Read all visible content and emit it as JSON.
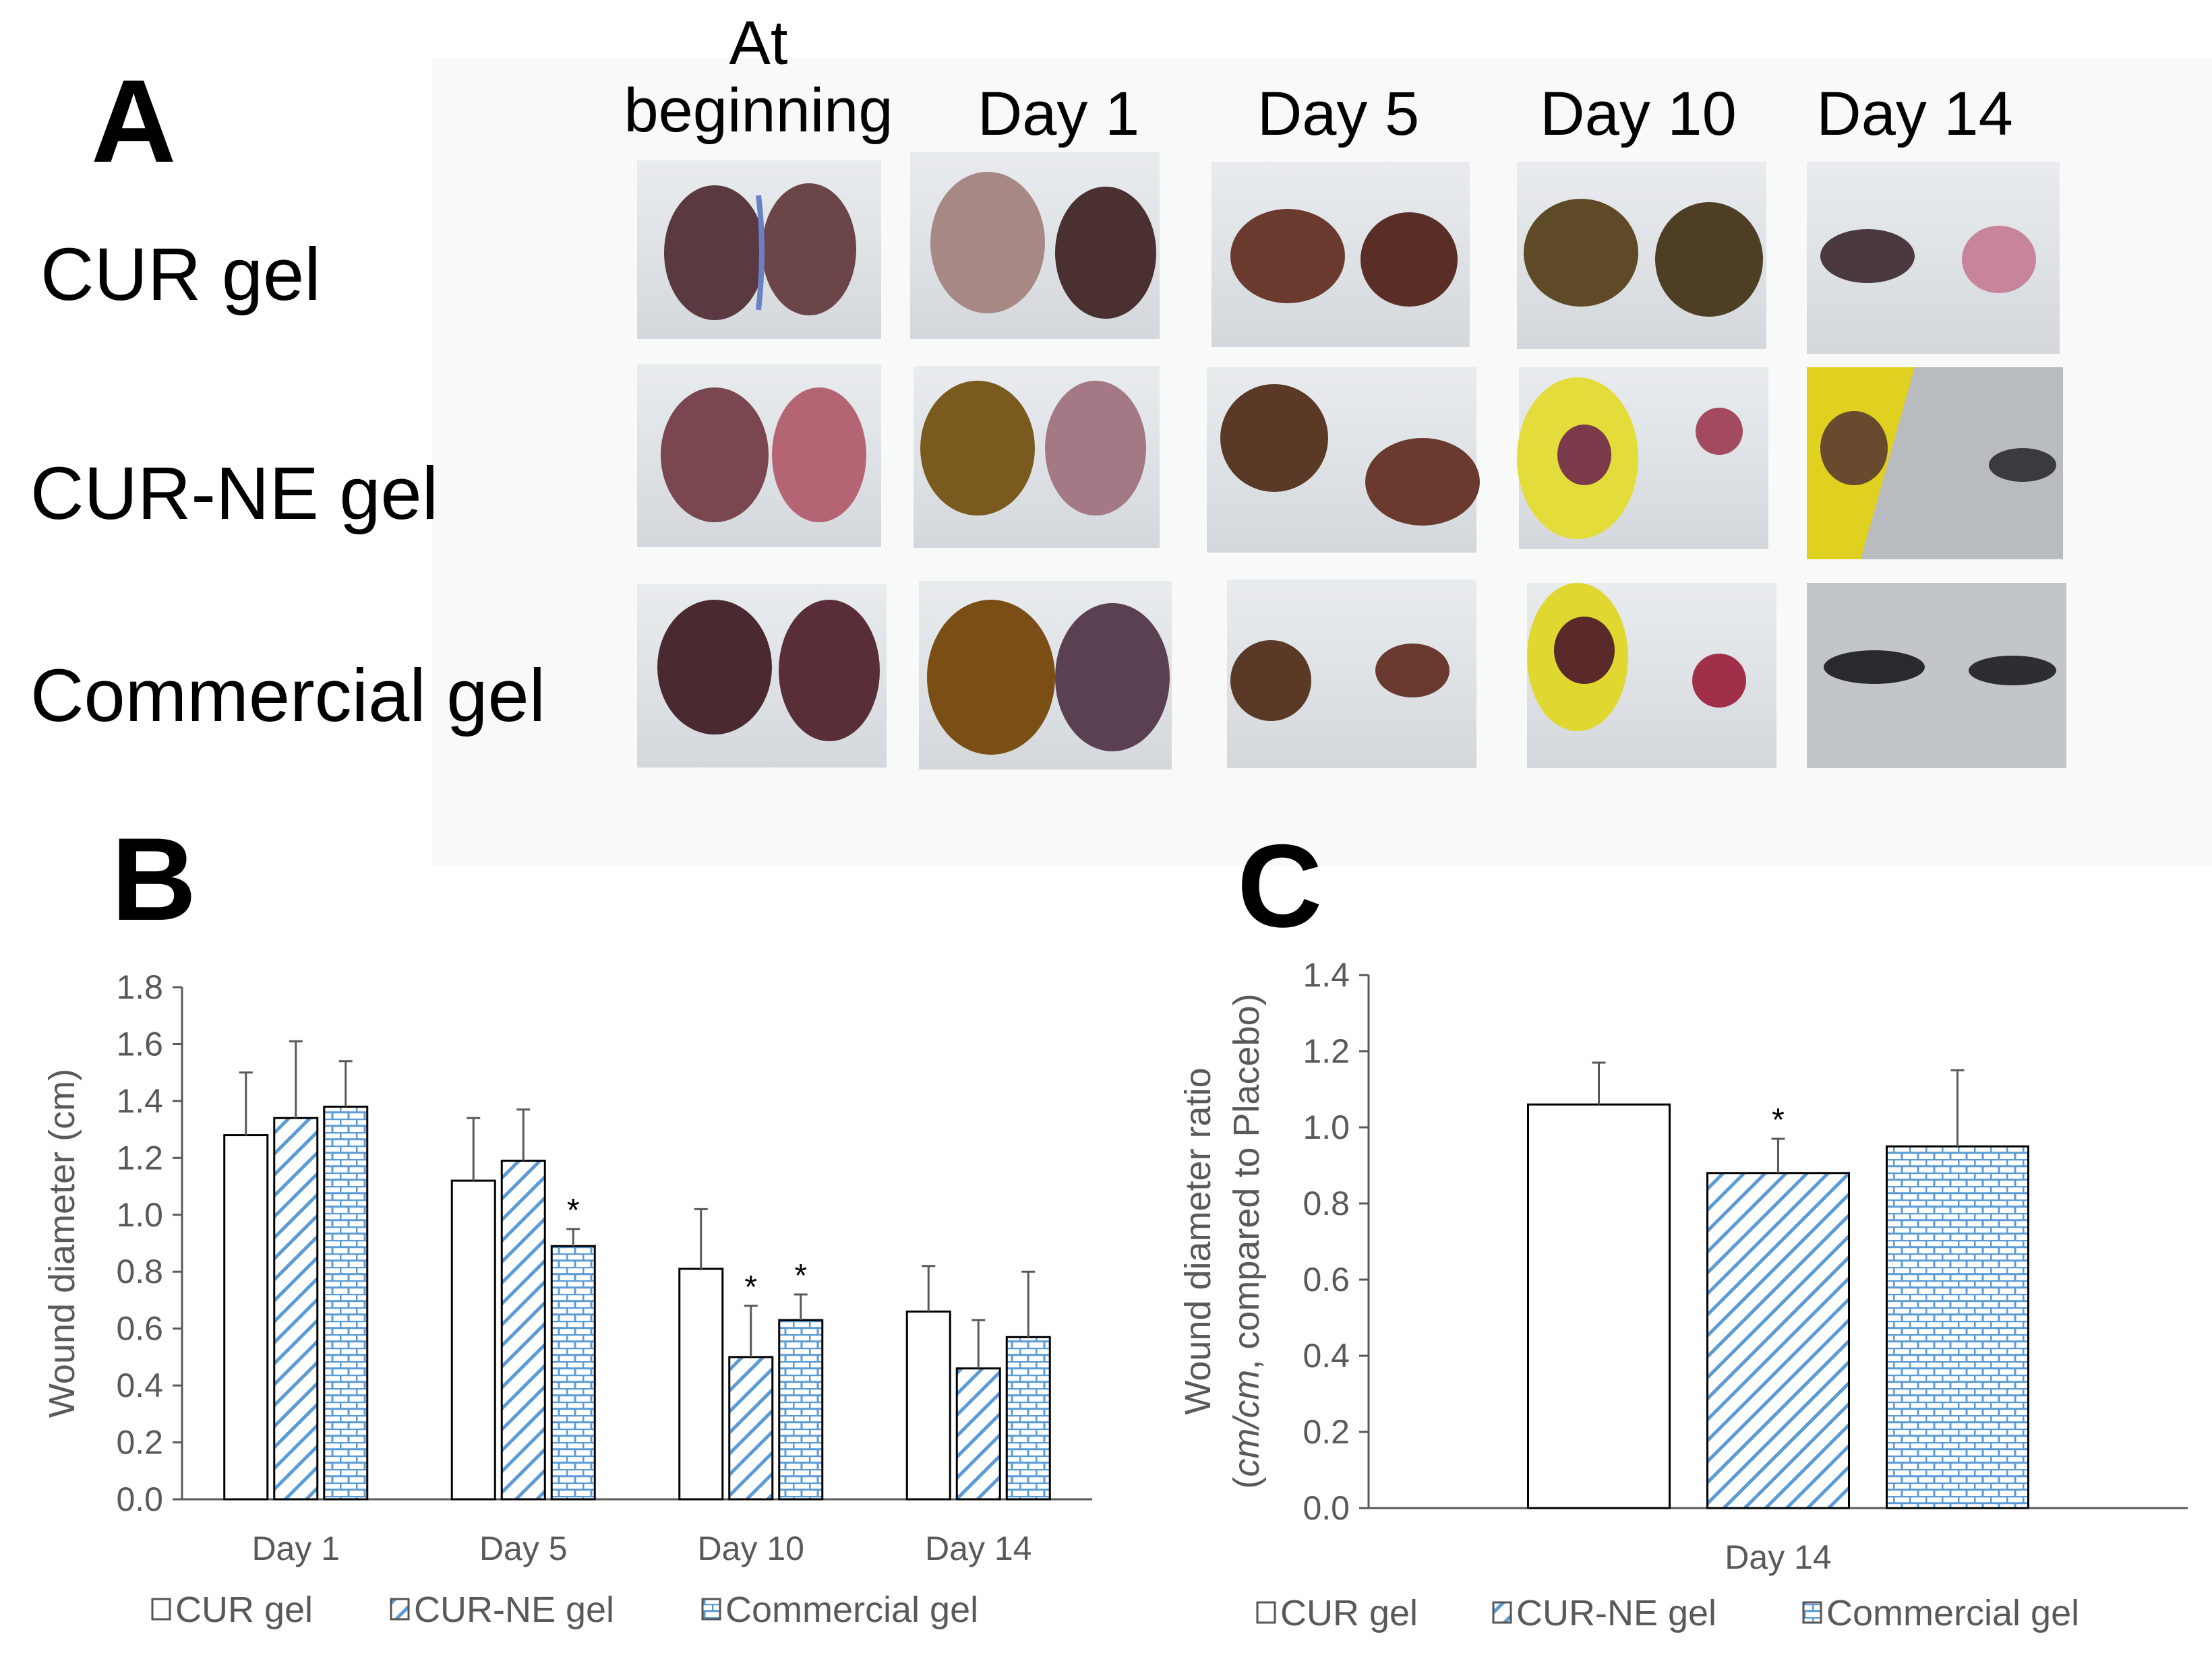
{
  "panels": {
    "a": "A",
    "b": "B",
    "c": "C"
  },
  "photo_grid": {
    "column_headers": [
      {
        "line1": "At",
        "line2": "beginning"
      },
      {
        "line1": "",
        "line2": "Day 1"
      },
      {
        "line1": "",
        "line2": "Day 5"
      },
      {
        "line1": "",
        "line2": "Day 10"
      },
      {
        "line1": "",
        "line2": "Day 14"
      }
    ],
    "rows": [
      "CUR gel",
      "CUR-NE gel",
      "Commercial gel"
    ]
  },
  "chart_data": [
    {
      "type": "bar",
      "title": "",
      "categories": [
        "Day 1",
        "Day 5",
        "Day 10",
        "Day 14"
      ],
      "xlabel": "",
      "ylabel": "Wound diameter (cm)",
      "ylim": [
        0,
        1.8
      ],
      "yticks": [
        "0.0",
        "0.2",
        "0.4",
        "0.6",
        "0.8",
        "1.0",
        "1.2",
        "1.4",
        "1.6",
        "1.8"
      ],
      "series": [
        {
          "name": "CUR gel",
          "values": [
            1.28,
            1.12,
            0.81,
            0.66
          ],
          "errors": [
            0.22,
            0.22,
            0.21,
            0.16
          ],
          "significant": [
            false,
            false,
            false,
            false
          ]
        },
        {
          "name": "CUR-NE gel",
          "values": [
            1.34,
            1.19,
            0.5,
            0.46
          ],
          "errors": [
            0.27,
            0.18,
            0.18,
            0.17
          ],
          "significant": [
            false,
            false,
            true,
            false
          ]
        },
        {
          "name": "Commercial gel",
          "values": [
            1.38,
            0.89,
            0.63,
            0.57
          ],
          "errors": [
            0.16,
            0.06,
            0.09,
            0.23
          ],
          "significant": [
            false,
            true,
            true,
            false
          ]
        }
      ],
      "significance_mark": "*"
    },
    {
      "type": "bar",
      "title": "",
      "categories": [
        "Day 14"
      ],
      "xlabel": "",
      "ylabel_line1": "Wound diameter ratio",
      "ylabel_line2_italic": "cm/cm",
      "ylabel_line2_rest": ", compared to Placebo)",
      "ylabel_line2_open": "(",
      "ylim": [
        0,
        1.4
      ],
      "yticks": [
        "0.0",
        "0.2",
        "0.4",
        "0.6",
        "0.8",
        "1.0",
        "1.2",
        "1.4"
      ],
      "series": [
        {
          "name": "CUR gel",
          "values": [
            1.06
          ],
          "errors": [
            0.11
          ],
          "significant": [
            false
          ]
        },
        {
          "name": "CUR-NE gel",
          "values": [
            0.88
          ],
          "errors": [
            0.09
          ],
          "significant": [
            true
          ]
        },
        {
          "name": "Commercial gel",
          "values": [
            0.95
          ],
          "errors": [
            0.2
          ],
          "significant": [
            false
          ]
        }
      ],
      "significance_mark": "*"
    }
  ],
  "colors": {
    "bar_stroke": "#000000",
    "pattern_blue": "#5b9bd5",
    "axis": "#595959",
    "text": "#000000"
  }
}
